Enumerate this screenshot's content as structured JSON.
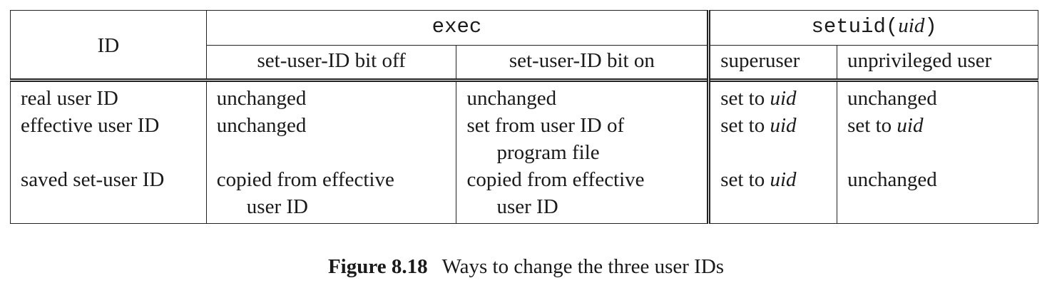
{
  "table": {
    "header": {
      "id_label": "ID",
      "exec_label": "exec",
      "setuid_label": "setuid(",
      "setuid_arg": "uid",
      "setuid_close": ")",
      "exec_sub": [
        "set-user-ID bit off",
        "set-user-ID bit on"
      ],
      "setuid_sub": [
        "superuser",
        "unprivileged user"
      ]
    },
    "rows": [
      {
        "id": "real user ID",
        "exec_off": [
          "unchanged"
        ],
        "exec_on": [
          "unchanged"
        ],
        "super_prefix": "set to ",
        "super_var": "uid",
        "unpriv_prefix": "unchanged",
        "unpriv_var": ""
      },
      {
        "id": "effective user ID",
        "exec_off": [
          "unchanged"
        ],
        "exec_on": [
          "set from user ID of",
          "program file"
        ],
        "super_prefix": "set to ",
        "super_var": "uid",
        "unpriv_prefix": "set to ",
        "unpriv_var": "uid"
      },
      {
        "id": "saved set-user ID",
        "exec_off": [
          "copied from effective",
          "user ID"
        ],
        "exec_on": [
          "copied from effective",
          "user ID"
        ],
        "super_prefix": "set to ",
        "super_var": "uid",
        "unpriv_prefix": "unchanged",
        "unpriv_var": ""
      }
    ]
  },
  "caption": {
    "label": "Figure 8.18",
    "text": "Ways to change the three user IDs"
  }
}
